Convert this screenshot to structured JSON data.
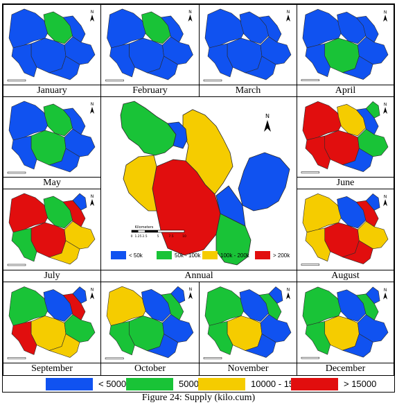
{
  "colors": {
    "blue": "#1052f0",
    "green": "#19c337",
    "yellow": "#f5cc00",
    "red": "#e10e0e"
  },
  "monthly_legend": [
    {
      "label": "< 5000",
      "color": "#1052f0"
    },
    {
      "label": "5000 - 10000",
      "color": "#19c337"
    },
    {
      "label": "10000 - 15000",
      "color": "#f5cc00"
    },
    {
      "label": "> 15000",
      "color": "#e10e0e"
    }
  ],
  "annual_legend": [
    {
      "label": "< 50k",
      "color": "#1052f0"
    },
    {
      "label": "50k - 100k",
      "color": "#19c337"
    },
    {
      "label": "100k - 200k",
      "color": "#f5cc00"
    },
    {
      "label": "> 200k",
      "color": "#e10e0e"
    }
  ],
  "annual_scale": {
    "unit": "Kilometers",
    "ticks": [
      "0",
      "1.25",
      "2.5",
      "5",
      "7.5",
      "10"
    ]
  },
  "north_symbol": "N",
  "panels": {
    "january": {
      "label": "January",
      "zones": [
        "blue",
        "green",
        "blue",
        "blue",
        "blue",
        "blue",
        "blue"
      ]
    },
    "february": {
      "label": "February",
      "zones": [
        "blue",
        "green",
        "blue",
        "blue",
        "blue",
        "blue",
        "blue"
      ]
    },
    "march": {
      "label": "March",
      "zones": [
        "blue",
        "blue",
        "blue",
        "blue",
        "blue",
        "blue",
        "blue"
      ]
    },
    "april": {
      "label": "April",
      "zones": [
        "blue",
        "blue",
        "blue",
        "green",
        "blue",
        "blue",
        "blue"
      ]
    },
    "may": {
      "label": "May",
      "zones": [
        "blue",
        "green",
        "blue",
        "green",
        "blue",
        "blue",
        "blue"
      ]
    },
    "annual": {
      "label": "Annual",
      "zones": [
        "green",
        "yellow",
        "blue",
        "red",
        "yellow",
        "blue",
        "green",
        "blue"
      ]
    },
    "june": {
      "label": "June",
      "zones": [
        "red",
        "yellow",
        "blue",
        "red",
        "red",
        "green",
        "blue",
        "green"
      ]
    },
    "july": {
      "label": "July",
      "zones": [
        "red",
        "green",
        "red",
        "red",
        "green",
        "yellow",
        "yellow",
        "blue"
      ]
    },
    "august": {
      "label": "August",
      "zones": [
        "yellow",
        "blue",
        "red",
        "red",
        "yellow",
        "yellow",
        "red",
        "blue"
      ]
    },
    "september": {
      "label": "September",
      "zones": [
        "green",
        "blue",
        "red",
        "yellow",
        "red",
        "green",
        "yellow",
        "blue"
      ]
    },
    "october": {
      "label": "October",
      "zones": [
        "yellow",
        "blue",
        "green",
        "green",
        "green",
        "blue",
        "blue",
        "blue"
      ]
    },
    "november": {
      "label": "November",
      "zones": [
        "green",
        "blue",
        "green",
        "yellow",
        "green",
        "blue",
        "blue",
        "blue"
      ]
    },
    "december": {
      "label": "December",
      "zones": [
        "green",
        "blue",
        "green",
        "yellow",
        "green",
        "blue",
        "blue",
        "blue"
      ]
    }
  },
  "caption": "Figure 24: Supply (kilo.cum)"
}
